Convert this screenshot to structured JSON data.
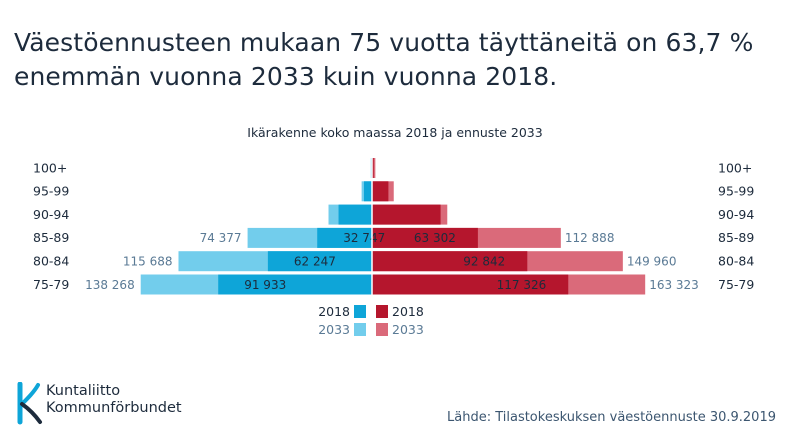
{
  "title": {
    "line1": "Väestöennusteen mukaan 75 vuotta täyttäneitä on 63,7 %",
    "line2": "enemmän vuonna 2033 kuin vuonna 2018."
  },
  "chart_data": {
    "type": "bar",
    "orientation": "horizontal-pyramid",
    "title": "Ikärakenne koko maassa 2018 ja ennuste 2033",
    "categories": [
      "100+",
      "95-99",
      "90-94",
      "85-89",
      "80-84",
      "75-79"
    ],
    "series": [
      {
        "name": "2018",
        "side": "left",
        "values": [
          300,
          4800,
          20000,
          32747,
          62247,
          91933
        ],
        "labels": [
          "",
          "",
          "",
          "32 747",
          "62 247",
          "91 933"
        ],
        "color": "#0ea5d8"
      },
      {
        "name": "2033",
        "side": "left",
        "values": [
          700,
          6200,
          26000,
          74377,
          115688,
          138268
        ],
        "labels": [
          "",
          "",
          "",
          "74 377",
          "115 688",
          "138 268"
        ],
        "color": "#72cdec"
      },
      {
        "name": "2018",
        "side": "right",
        "values": [
          1000,
          9800,
          41000,
          63302,
          92842,
          117326
        ],
        "labels": [
          "",
          "",
          "",
          "63 302",
          "92 842",
          "117 326"
        ],
        "color": "#b5162d"
      },
      {
        "name": "2033",
        "side": "right",
        "values": [
          2000,
          13000,
          45000,
          112888,
          149960,
          163323
        ],
        "labels": [
          "",
          "",
          "",
          "112 888",
          "149 960",
          "163 323"
        ],
        "color": "#da6a7a"
      }
    ],
    "xlim": [
      -165000,
      165000
    ],
    "grid": false,
    "legend": {
      "placement": "bottom-center",
      "entries": [
        {
          "label": "2018",
          "color": "#0ea5d8",
          "side": "left"
        },
        {
          "label": "2018",
          "color": "#b5162d",
          "side": "right"
        },
        {
          "label": "2033",
          "color": "#72cdec",
          "side": "left"
        },
        {
          "label": "2033",
          "color": "#da6a7a",
          "side": "right"
        }
      ]
    }
  },
  "logo": {
    "line1": "Kuntaliitto",
    "line2": "Kommunförbundet",
    "icon": "kuntaliitto-k-logo-icon",
    "color": "#0ea5d8"
  },
  "source": "Lähde: Tilastokeskuksen väestöennuste 30.9.2019"
}
